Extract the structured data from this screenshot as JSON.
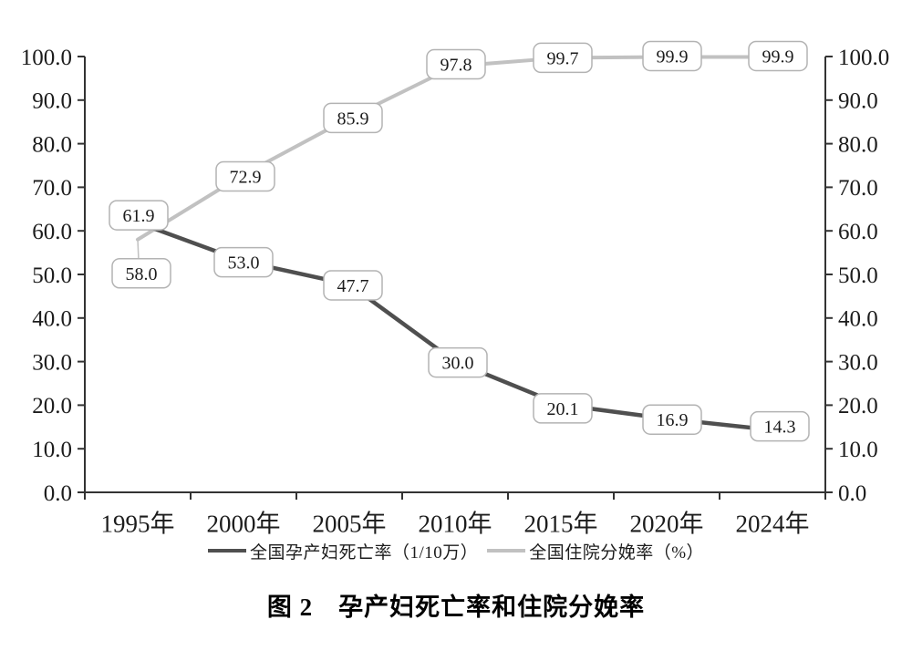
{
  "chart_data": {
    "type": "line",
    "title": "图 2　孕产妇死亡率和住院分娩率",
    "categories": [
      "1995年",
      "2000年",
      "2005年",
      "2010年",
      "2015年",
      "2020年",
      "2024年"
    ],
    "series": [
      {
        "name": "全国住院分娩率（%）",
        "values": [
          58.0,
          72.9,
          85.9,
          97.8,
          99.7,
          99.9,
          99.9
        ],
        "labels": [
          "58.0",
          "72.9",
          "85.9",
          "97.8",
          "99.7",
          "99.9",
          "99.9"
        ],
        "color": "#c1c1c1",
        "stroke_width": 4,
        "label_offsets": [
          [
            4,
            37
          ],
          [
            2,
            2
          ],
          [
            4,
            0
          ],
          [
            1,
            -2
          ],
          [
            2,
            0
          ],
          [
            6,
            -1
          ],
          [
            6,
            -1
          ]
        ],
        "leader_indices": [
          0
        ]
      },
      {
        "name": "全国孕产妇死亡率（1/10万）",
        "values": [
          61.9,
          53.0,
          47.7,
          30.0,
          20.1,
          16.9,
          14.3
        ],
        "labels": [
          "61.9",
          "53.0",
          "47.7",
          "30.0",
          "20.1",
          "16.9",
          "14.3"
        ],
        "color": "#4f4f4f",
        "stroke_width": 4.5,
        "label_offsets": [
          [
            1,
            -8
          ],
          [
            0,
            1
          ],
          [
            4,
            1
          ],
          [
            3,
            1
          ],
          [
            2,
            4
          ],
          [
            6,
            1
          ],
          [
            8,
            -4
          ]
        ],
        "leader_indices": []
      }
    ],
    "legend_order": [
      1,
      0
    ],
    "y_axis": {
      "min": 0,
      "max": 100,
      "step": 10,
      "decimals": 1,
      "left": true,
      "right": true
    },
    "grid": false,
    "legend_position": "bottom",
    "layout": {
      "plot_left": 93,
      "plot_right": 905,
      "plot_top": 62,
      "plot_bottom": 540,
      "tick_len": 8,
      "x_label_dy": 34,
      "label_box_w": 64,
      "label_box_h": 32,
      "label_box_radius": 8
    },
    "colors": {
      "axis": "#333333",
      "text": "#1c1c1c",
      "label_box_fill": "#ffffff",
      "label_box_border": "#b3b3b3",
      "leader": "#c1c1c1"
    },
    "fonts": {
      "y_tick_size": 25,
      "x_tick_size": 27,
      "data_label_size": 20
    }
  }
}
